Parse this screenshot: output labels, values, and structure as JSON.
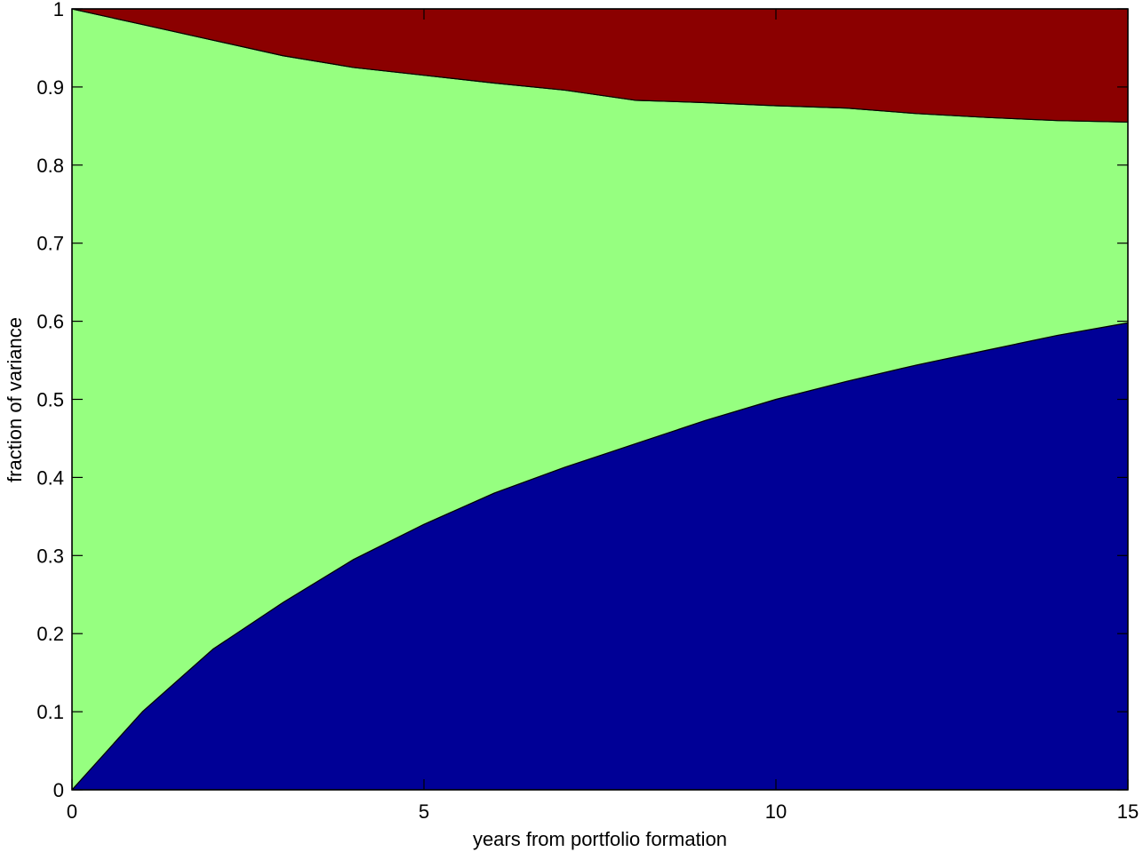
{
  "chart_data": {
    "type": "area",
    "stacked": true,
    "xlabel": "years from portfolio formation",
    "ylabel": "fraction of variance",
    "xlim": [
      0,
      15
    ],
    "ylim": [
      0,
      1
    ],
    "xticks": [
      0,
      5,
      10,
      15
    ],
    "yticks": [
      0,
      0.1,
      0.2,
      0.3,
      0.4,
      0.5,
      0.6,
      0.7,
      0.8,
      0.9,
      1
    ],
    "grid": false,
    "legend": "none",
    "x": [
      0,
      1,
      2,
      3,
      4,
      5,
      6,
      7,
      8,
      9,
      10,
      11,
      12,
      13,
      14,
      15
    ],
    "series": [
      {
        "color": "#000096",
        "values": [
          0.0,
          0.1,
          0.18,
          0.24,
          0.295,
          0.34,
          0.38,
          0.413,
          0.443,
          0.473,
          0.5,
          0.523,
          0.544,
          0.563,
          0.582,
          0.598
        ]
      },
      {
        "color": "#96ff80",
        "values": [
          1.0,
          0.88,
          0.78,
          0.7,
          0.63,
          0.575,
          0.525,
          0.483,
          0.44,
          0.407,
          0.376,
          0.35,
          0.322,
          0.298,
          0.275,
          0.257
        ]
      },
      {
        "color": "#8b0000",
        "values": [
          0.0,
          0.02,
          0.04,
          0.06,
          0.075,
          0.085,
          0.095,
          0.104,
          0.117,
          0.12,
          0.124,
          0.127,
          0.134,
          0.139,
          0.143,
          0.145
        ]
      }
    ]
  }
}
